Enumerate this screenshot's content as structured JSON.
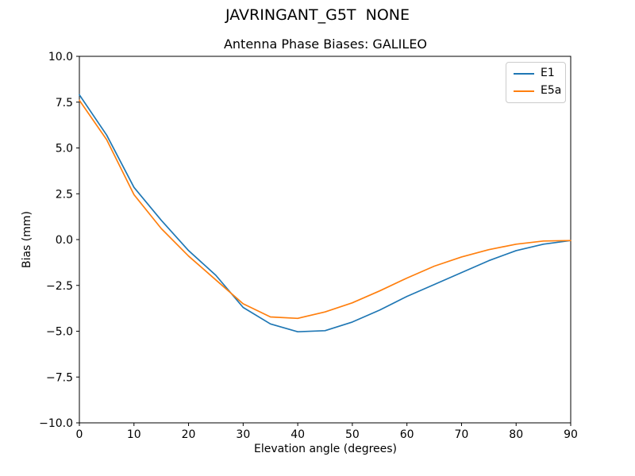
{
  "figure": {
    "suptitle": "JAVRINGANT_G5T  NONE"
  },
  "chart_data": {
    "type": "line",
    "suptitle": "JAVRINGANT_G5T  NONE",
    "title": "Antenna Phase Biases: GALILEO",
    "xlabel": "Elevation angle (degrees)",
    "ylabel": "Bias (mm)",
    "xlim": [
      0,
      90
    ],
    "ylim": [
      -10,
      10
    ],
    "grid": false,
    "legend_position": "upper right",
    "x_ticks": [
      0,
      10,
      20,
      30,
      40,
      50,
      60,
      70,
      80,
      90
    ],
    "x_tick_labels": [
      "0",
      "10",
      "20",
      "30",
      "40",
      "50",
      "60",
      "70",
      "80",
      "90"
    ],
    "y_ticks": [
      10,
      7.5,
      5,
      2.5,
      0,
      -2.5,
      -5,
      -7.5,
      -10
    ],
    "y_tick_labels": [
      "10.0",
      "7.5",
      "5.0",
      "2.5",
      "0.0",
      "−2.5",
      "−5.0",
      "−7.5",
      "−10.0"
    ],
    "x": [
      0,
      5,
      10,
      15,
      20,
      25,
      30,
      35,
      40,
      45,
      50,
      55,
      60,
      65,
      70,
      75,
      80,
      85,
      90
    ],
    "series": [
      {
        "name": "E1",
        "color": "#1f77b4",
        "values": [
          7.9,
          5.7,
          2.85,
          1.05,
          -0.6,
          -1.95,
          -3.7,
          -4.6,
          -5.03,
          -4.97,
          -4.5,
          -3.85,
          -3.1,
          -2.45,
          -1.8,
          -1.15,
          -0.6,
          -0.25,
          -0.05
        ]
      },
      {
        "name": "E5a",
        "color": "#ff7f0e",
        "values": [
          7.6,
          5.45,
          2.45,
          0.6,
          -0.9,
          -2.2,
          -3.5,
          -4.22,
          -4.3,
          -3.95,
          -3.45,
          -2.8,
          -2.1,
          -1.45,
          -0.95,
          -0.55,
          -0.25,
          -0.08,
          -0.05
        ]
      }
    ]
  }
}
